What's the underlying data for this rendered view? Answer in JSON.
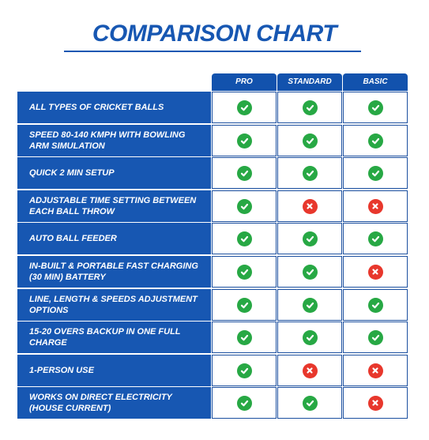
{
  "title": "COMPARISON CHART",
  "columns": [
    "PRO",
    "STANDARD",
    "BASIC"
  ],
  "colors": {
    "brand": "#1757b2",
    "check": "#27a844",
    "cross": "#e8372c"
  },
  "rows": [
    {
      "feature": "ALL TYPES OF CRICKET BALLS",
      "values": [
        "check",
        "check",
        "check"
      ]
    },
    {
      "feature": "SPEED 80-140 KMPH WITH BOWLING ARM SIMULATION",
      "values": [
        "check",
        "check",
        "check"
      ]
    },
    {
      "feature": "QUICK 2 MIN SETUP",
      "values": [
        "check",
        "check",
        "check"
      ]
    },
    {
      "feature": "ADJUSTABLE TIME SETTING BETWEEN EACH BALL THROW",
      "values": [
        "check",
        "cross",
        "cross"
      ]
    },
    {
      "feature": "AUTO BALL FEEDER",
      "values": [
        "check",
        "check",
        "check"
      ]
    },
    {
      "feature": "IN-BUILT & PORTABLE FAST CHARGING (30 MIN) BATTERY",
      "values": [
        "check",
        "check",
        "cross"
      ]
    },
    {
      "feature": "LINE, LENGTH & SPEEDS ADJUSTMENT OPTIONS",
      "values": [
        "check",
        "check",
        "check"
      ]
    },
    {
      "feature": "15-20 OVERS BACKUP IN ONE FULL CHARGE",
      "values": [
        "check",
        "check",
        "check"
      ]
    },
    {
      "feature": "1-PERSON USE",
      "values": [
        "check",
        "cross",
        "cross"
      ]
    },
    {
      "feature": "WORKS ON DIRECT ELECTRICITY (HOUSE CURRENT)",
      "values": [
        "check",
        "check",
        "cross"
      ]
    }
  ]
}
